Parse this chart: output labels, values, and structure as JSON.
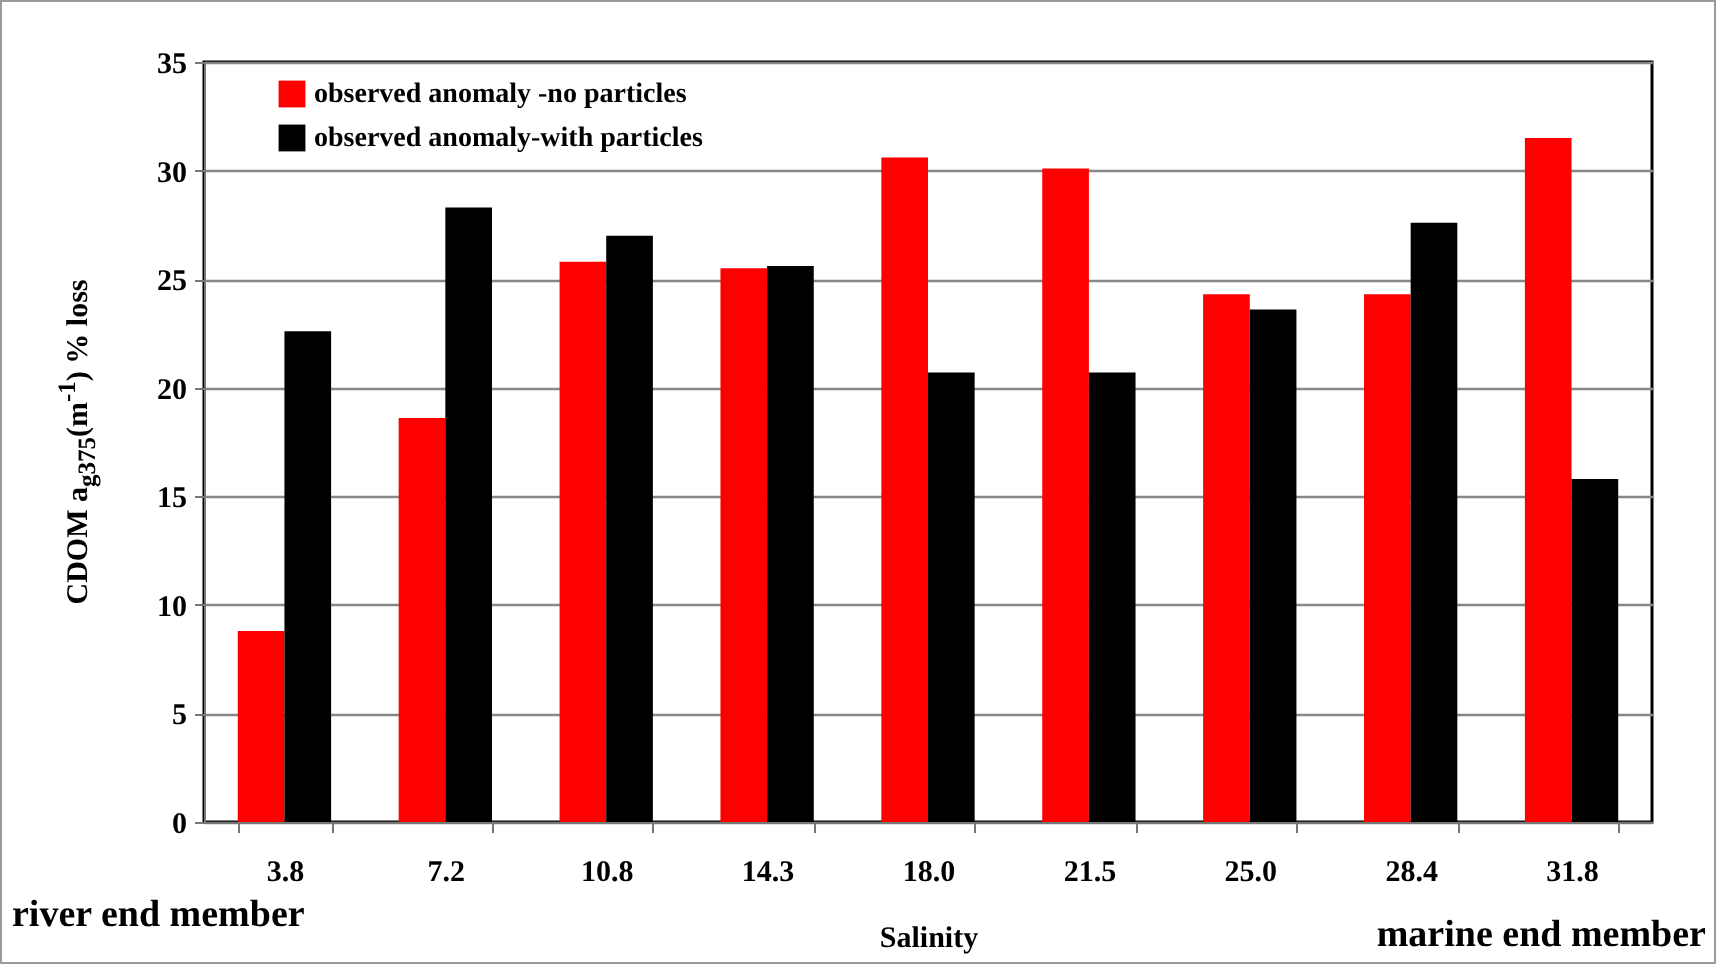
{
  "chart_data": {
    "type": "bar",
    "xlabel": "Salinity",
    "ylabel": "CDOM a$_{g375}$(m$^{-1}$) % loss",
    "categories": [
      "3.8",
      "7.2",
      "10.8",
      "14.3",
      "18.0",
      "21.5",
      "25.0",
      "28.4",
      "31.8"
    ],
    "series": [
      {
        "name": "observed anomaly -no  particles",
        "color": "#ff0000",
        "values": [
          8.8,
          18.6,
          25.8,
          25.5,
          30.6,
          30.1,
          24.3,
          24.3,
          31.5
        ]
      },
      {
        "name": "observed anomaly-with particles",
        "color": "#000000",
        "values": [
          22.6,
          28.3,
          27.0,
          25.6,
          20.7,
          20.7,
          23.6,
          27.6,
          15.8
        ]
      }
    ],
    "ylim": [
      0,
      35
    ],
    "yticks": [
      0,
      5,
      10,
      15,
      20,
      25,
      30,
      35
    ],
    "grid": "y",
    "legend": "top left",
    "annotations": [
      "river end member",
      "marine end member"
    ]
  }
}
